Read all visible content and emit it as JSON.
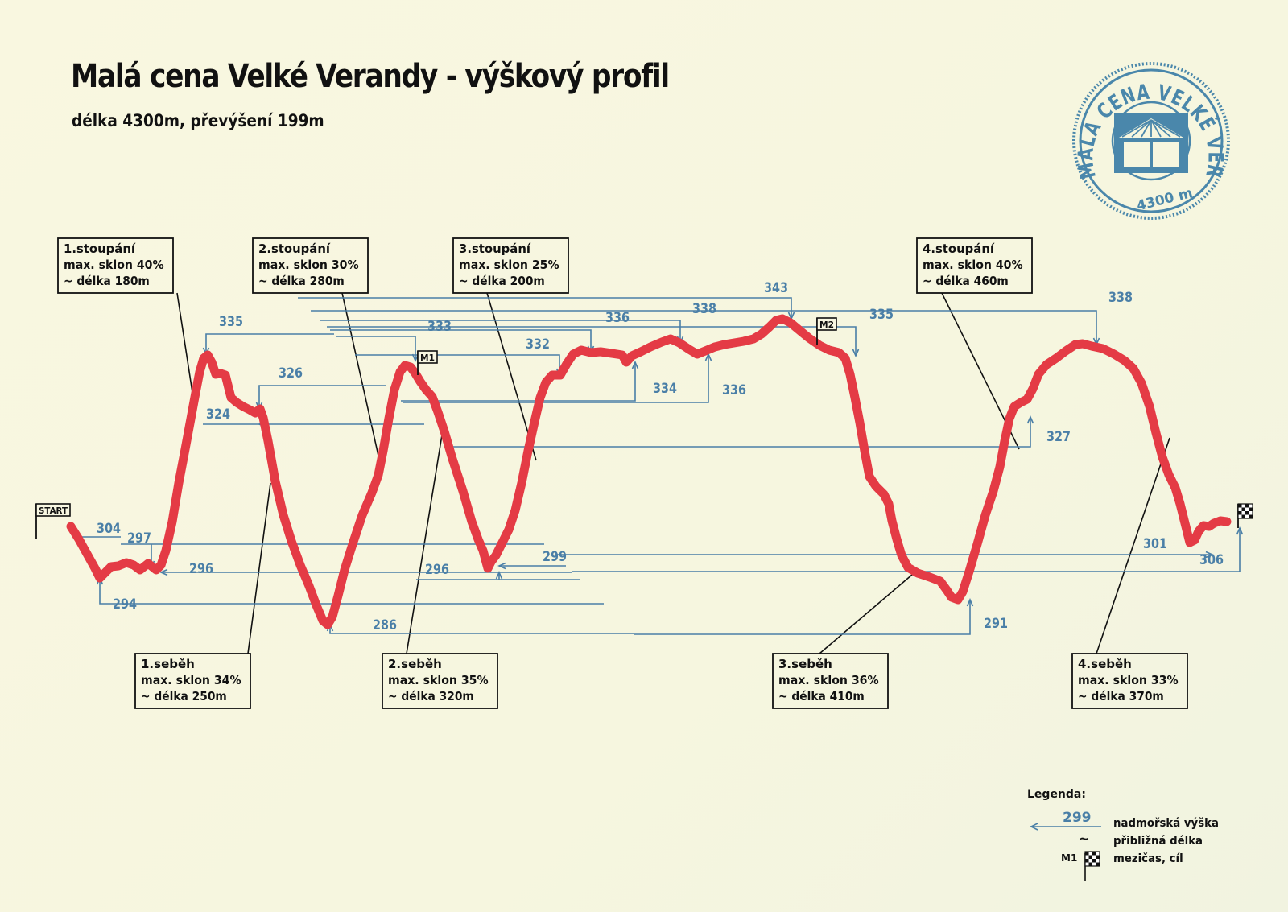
{
  "title": "Malá cena Velké Verandy - výškový profil",
  "subtitle": "délka 4300m, převýšení 199m",
  "badge": {
    "text": "MALÁ CENA VELKÉ VERANDY",
    "distance": "4300 m",
    "color": "#4a87ab"
  },
  "colors": {
    "profile": "#e43b45",
    "elevation_marker": "#4a7fa7",
    "callout_border": "#111111"
  },
  "markers": {
    "start": "START",
    "m1": "M1",
    "m2": "M2",
    "finish_icon": "checkered-flag-icon"
  },
  "callouts": [
    {
      "lines": [
        "1.stoupání",
        "max. sklon 40%",
        "~ délka 180m"
      ]
    },
    {
      "lines": [
        "2.stoupání",
        "max. sklon 30%",
        "~ délka 280m"
      ]
    },
    {
      "lines": [
        "3.stoupání",
        "max. sklon 25%",
        "~ délka 200m"
      ]
    },
    {
      "lines": [
        "4.stoupání",
        "max. sklon 40%",
        "~ délka 460m"
      ]
    },
    {
      "lines": [
        "1.seběh",
        "max. sklon 34%",
        "~ délka 250m"
      ]
    },
    {
      "lines": [
        "2.seběh",
        "max. sklon 35%",
        "~ délka 320m"
      ]
    },
    {
      "lines": [
        "3.seběh",
        "max. sklon 36%",
        "~ délka 410m"
      ]
    },
    {
      "lines": [
        "4.seběh",
        "max. sklon 33%",
        "~ délka 370m"
      ]
    }
  ],
  "legend": {
    "title": "Legenda:",
    "sample_value": "299",
    "elevation_label": "nadmořská výška",
    "approx_label": "přibližná délka",
    "tilde": "~",
    "m1": "M1",
    "split_label": "mezičas, cíl"
  },
  "chart_data": {
    "type": "line",
    "title": "Malá cena Velké Verandy - výškový profil",
    "subtitle": "délka 4300m, převýšení 199m",
    "xlabel": "",
    "ylabel": "",
    "grid": false,
    "axes": false,
    "legend_position": "bottom-right",
    "series": [
      {
        "values": [
          304,
          294,
          297,
          296,
          335,
          324,
          326,
          286,
          333,
          296,
          299,
          332,
          336,
          334,
          338,
          336,
          343,
          335,
          291,
          327,
          338,
          301,
          306
        ]
      }
    ],
    "labeled_points": [
      304,
      294,
      297,
      296,
      335,
      324,
      326,
      286,
      333,
      296,
      299,
      332,
      336,
      334,
      338,
      336,
      343,
      335,
      291,
      327,
      338,
      301,
      306
    ],
    "labels": [
      "304",
      "294",
      "297",
      "296",
      "335",
      "324",
      "326",
      "286",
      "333",
      "296",
      "299",
      "332",
      "336",
      "334",
      "338",
      "336",
      "343",
      "335",
      "291",
      "327",
      "338",
      "301",
      "306"
    ]
  }
}
